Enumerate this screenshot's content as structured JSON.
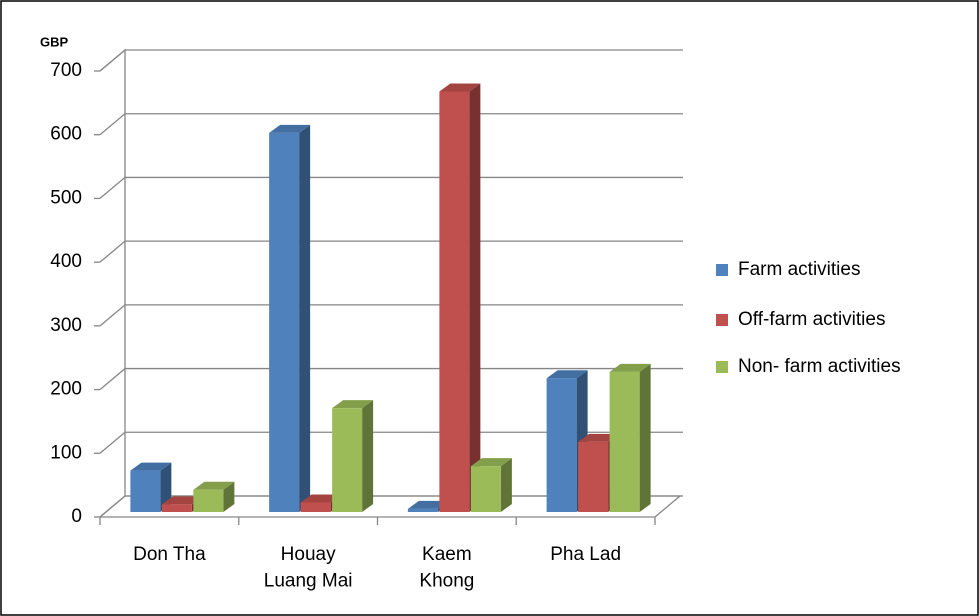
{
  "chart_data": {
    "type": "bar3d",
    "y_label": "GBP",
    "categories": [
      "Don Tha",
      "Houay\nLuang Mai",
      "Kaem\nKhong",
      "Pha Lad"
    ],
    "series": [
      {
        "name": "Farm activities",
        "color": "#4f81bd",
        "values": [
          65,
          595,
          5,
          210
        ]
      },
      {
        "name": "Off-farm activities",
        "color": "#c0504d",
        "values": [
          12,
          15,
          660,
          110
        ]
      },
      {
        "name": "Non- farm activities",
        "color": "#9bbb59",
        "values": [
          35,
          163,
          72,
          220
        ]
      }
    ],
    "ylim": [
      0,
      700
    ],
    "yticks": [
      0,
      100,
      200,
      300,
      400,
      500,
      600,
      700
    ],
    "grid": true,
    "legend": "right"
  }
}
